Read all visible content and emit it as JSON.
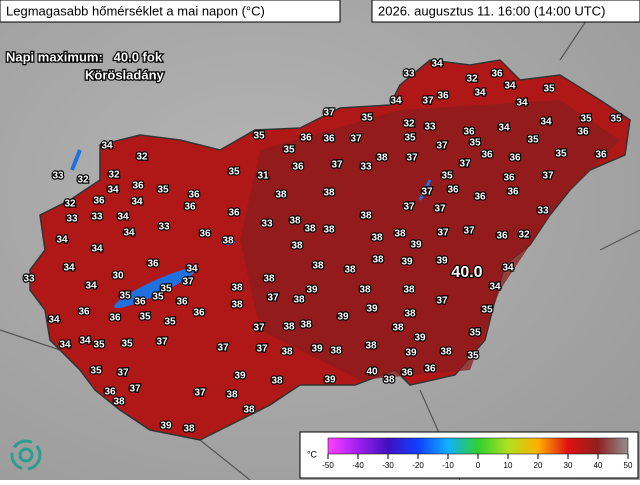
{
  "header": {
    "title": "Legmagasabb hőmérséklet a mai napon (°C)",
    "timestamp": "2026. augusztus 11. 16:00 (14:00 UTC)"
  },
  "summary": {
    "text": "Napi maximum:   40.0 fok",
    "location": "Körösladány"
  },
  "max_marker": "40.0",
  "stations": [
    34,
    33,
    32,
    36,
    36,
    34,
    34,
    35,
    37,
    34,
    34,
    37,
    35,
    32,
    33,
    36,
    34,
    34,
    35,
    35,
    36,
    35,
    36,
    36,
    37,
    35,
    37,
    35,
    35,
    34,
    32,
    35,
    37,
    33,
    38,
    37,
    37,
    36,
    36,
    35,
    36,
    33,
    32,
    32,
    35,
    31,
    36,
    38,
    38,
    35,
    37,
    36,
    34,
    36,
    35,
    36,
    32,
    36,
    37,
    36,
    36,
    36,
    33,
    33,
    34,
    34,
    36,
    36,
    33,
    38,
    38,
    38,
    37,
    37,
    33,
    34,
    34,
    34,
    33,
    36,
    38,
    38,
    38,
    38,
    38,
    39,
    37,
    37,
    36,
    32,
    33,
    34,
    30,
    36,
    34,
    37,
    38,
    38,
    38,
    38,
    39,
    39,
    34,
    34,
    35,
    35,
    36,
    35,
    36,
    38,
    37,
    38,
    39,
    38,
    38,
    34,
    34,
    36,
    36,
    35,
    35,
    36,
    38,
    37,
    38,
    38,
    39,
    39,
    38,
    37,
    35,
    34,
    34,
    35,
    35,
    37,
    37,
    37,
    38,
    39,
    38,
    35,
    35,
    37,
    39,
    38,
    38,
    38,
    39,
    39,
    38,
    35,
    36,
    37,
    37,
    38,
    39,
    40,
    38,
    36,
    36,
    38,
    39,
    38,
    38
  ],
  "legend": {
    "unit": "°C",
    "ticks": [
      -50,
      -40,
      -30,
      -20,
      -10,
      0,
      10,
      20,
      30,
      40,
      50
    ]
  }
}
